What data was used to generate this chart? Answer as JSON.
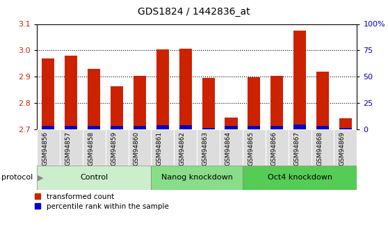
{
  "title": "GDS1824 / 1442836_at",
  "samples": [
    "GSM94856",
    "GSM94857",
    "GSM94858",
    "GSM94859",
    "GSM94860",
    "GSM94861",
    "GSM94862",
    "GSM94863",
    "GSM94864",
    "GSM94865",
    "GSM94866",
    "GSM94867",
    "GSM94868",
    "GSM94869"
  ],
  "transformed_count": [
    2.97,
    2.98,
    2.93,
    2.865,
    2.905,
    3.005,
    3.007,
    2.895,
    2.745,
    2.898,
    2.905,
    3.075,
    2.92,
    2.743
  ],
  "percentile_rank": [
    3.5,
    3.5,
    3.5,
    3.5,
    3.5,
    4.0,
    4.0,
    1.5,
    3.5,
    3.5,
    3.5,
    5.0,
    3.5,
    1.5
  ],
  "groups": [
    {
      "label": "Control",
      "start": 0,
      "end": 5
    },
    {
      "label": "Nanog knockdown",
      "start": 5,
      "end": 9
    },
    {
      "label": "Oct4 knockdown",
      "start": 9,
      "end": 14
    }
  ],
  "group_colors": [
    "#cceecc",
    "#88dd88",
    "#55cc55"
  ],
  "ylim_left": [
    2.7,
    3.1
  ],
  "ylim_right": [
    0,
    100
  ],
  "right_ticks": [
    0,
    25,
    50,
    75,
    100
  ],
  "right_tick_labels": [
    "0",
    "25",
    "50",
    "75",
    "100%"
  ],
  "left_ticks": [
    2.7,
    2.8,
    2.9,
    3.0,
    3.1
  ],
  "bar_color_red": "#cc2200",
  "bar_color_blue": "#0000cc",
  "bar_width": 0.55,
  "base_value": 2.7,
  "bg_plot": "#ffffff",
  "xtick_bg": "#dddddd",
  "protocol_label": "protocol",
  "legend_red_label": "transformed count",
  "legend_blue_label": "percentile rank within the sample",
  "percentile_scale_max": 100
}
